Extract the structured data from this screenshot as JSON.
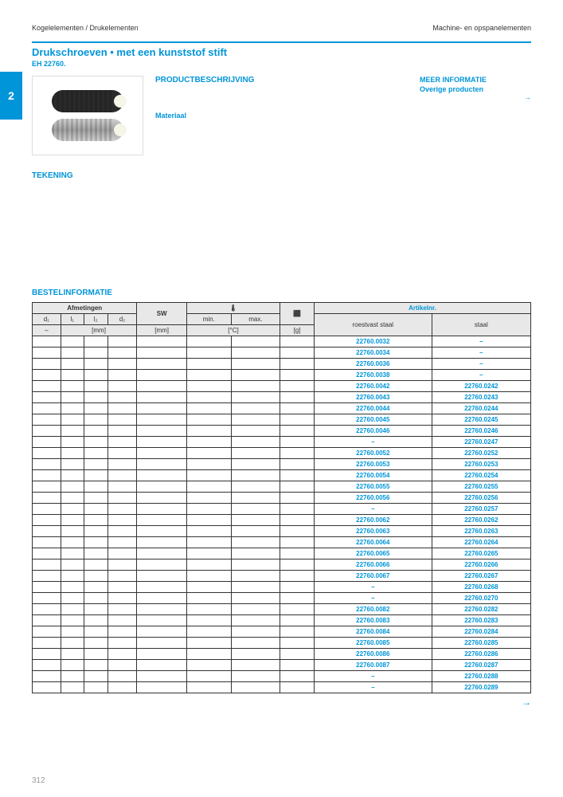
{
  "header": {
    "left": "Kogelelementen / Drukelementen",
    "right": "Machine- en opspanelementen"
  },
  "sidetab": "2",
  "title": "Drukschroeven • met een kunststof stift",
  "subtitle": "EH 22760.",
  "sections": {
    "desc": "PRODUCTBESCHRIJVING",
    "material": "Materiaal",
    "tekening": "TEKENING",
    "order": "BESTELINFORMATIE"
  },
  "moreinfo": {
    "title": "MEER INFORMATIE",
    "sub": "Overige producten",
    "arrow": "→"
  },
  "table": {
    "headers": {
      "afmetingen": "Afmetingen",
      "sw": "SW",
      "temp_icon": "🌡",
      "weight_icon": "⬛",
      "artikelnr": "Artikelnr.",
      "d1": "d₁",
      "l1": "l₁",
      "l2": "l₂",
      "d2": "d₂",
      "min": "min.",
      "max": "max.",
      "mm": "[mm]",
      "celsius": "[°C]",
      "g": "[g]",
      "rvs": "roestvast staal",
      "staal": "staal"
    },
    "rows": [
      {
        "rvs": "22760.0032",
        "staal": "–"
      },
      {
        "rvs": "22760.0034",
        "staal": "–"
      },
      {
        "rvs": "22760.0036",
        "staal": "–"
      },
      {
        "rvs": "22760.0038",
        "staal": "–"
      },
      {
        "rvs": "22760.0042",
        "staal": "22760.0242"
      },
      {
        "rvs": "22760.0043",
        "staal": "22760.0243"
      },
      {
        "rvs": "22760.0044",
        "staal": "22760.0244"
      },
      {
        "rvs": "22760.0045",
        "staal": "22760.0245"
      },
      {
        "rvs": "22760.0046",
        "staal": "22760.0246"
      },
      {
        "rvs": "–",
        "staal": "22760.0247"
      },
      {
        "rvs": "22760.0052",
        "staal": "22760.0252"
      },
      {
        "rvs": "22760.0053",
        "staal": "22760.0253"
      },
      {
        "rvs": "22760.0054",
        "staal": "22760.0254"
      },
      {
        "rvs": "22760.0055",
        "staal": "22760.0255"
      },
      {
        "rvs": "22760.0056",
        "staal": "22760.0256"
      },
      {
        "rvs": "–",
        "staal": "22760.0257"
      },
      {
        "rvs": "22760.0062",
        "staal": "22760.0262"
      },
      {
        "rvs": "22760.0063",
        "staal": "22760.0263"
      },
      {
        "rvs": "22760.0064",
        "staal": "22760.0264"
      },
      {
        "rvs": "22760.0065",
        "staal": "22760.0265"
      },
      {
        "rvs": "22760.0066",
        "staal": "22760.0266"
      },
      {
        "rvs": "22760.0067",
        "staal": "22760.0267"
      },
      {
        "rvs": "–",
        "staal": "22760.0268"
      },
      {
        "rvs": "–",
        "staal": "22760.0270"
      },
      {
        "rvs": "22760.0082",
        "staal": "22760.0282"
      },
      {
        "rvs": "22760.0083",
        "staal": "22760.0283"
      },
      {
        "rvs": "22760.0084",
        "staal": "22760.0284"
      },
      {
        "rvs": "22760.0085",
        "staal": "22760.0285"
      },
      {
        "rvs": "22760.0086",
        "staal": "22760.0286"
      },
      {
        "rvs": "22760.0087",
        "staal": "22760.0287"
      },
      {
        "rvs": "–",
        "staal": "22760.0288"
      },
      {
        "rvs": "–",
        "staal": "22760.0289"
      }
    ]
  },
  "pagenum": "312",
  "arrow": "→"
}
